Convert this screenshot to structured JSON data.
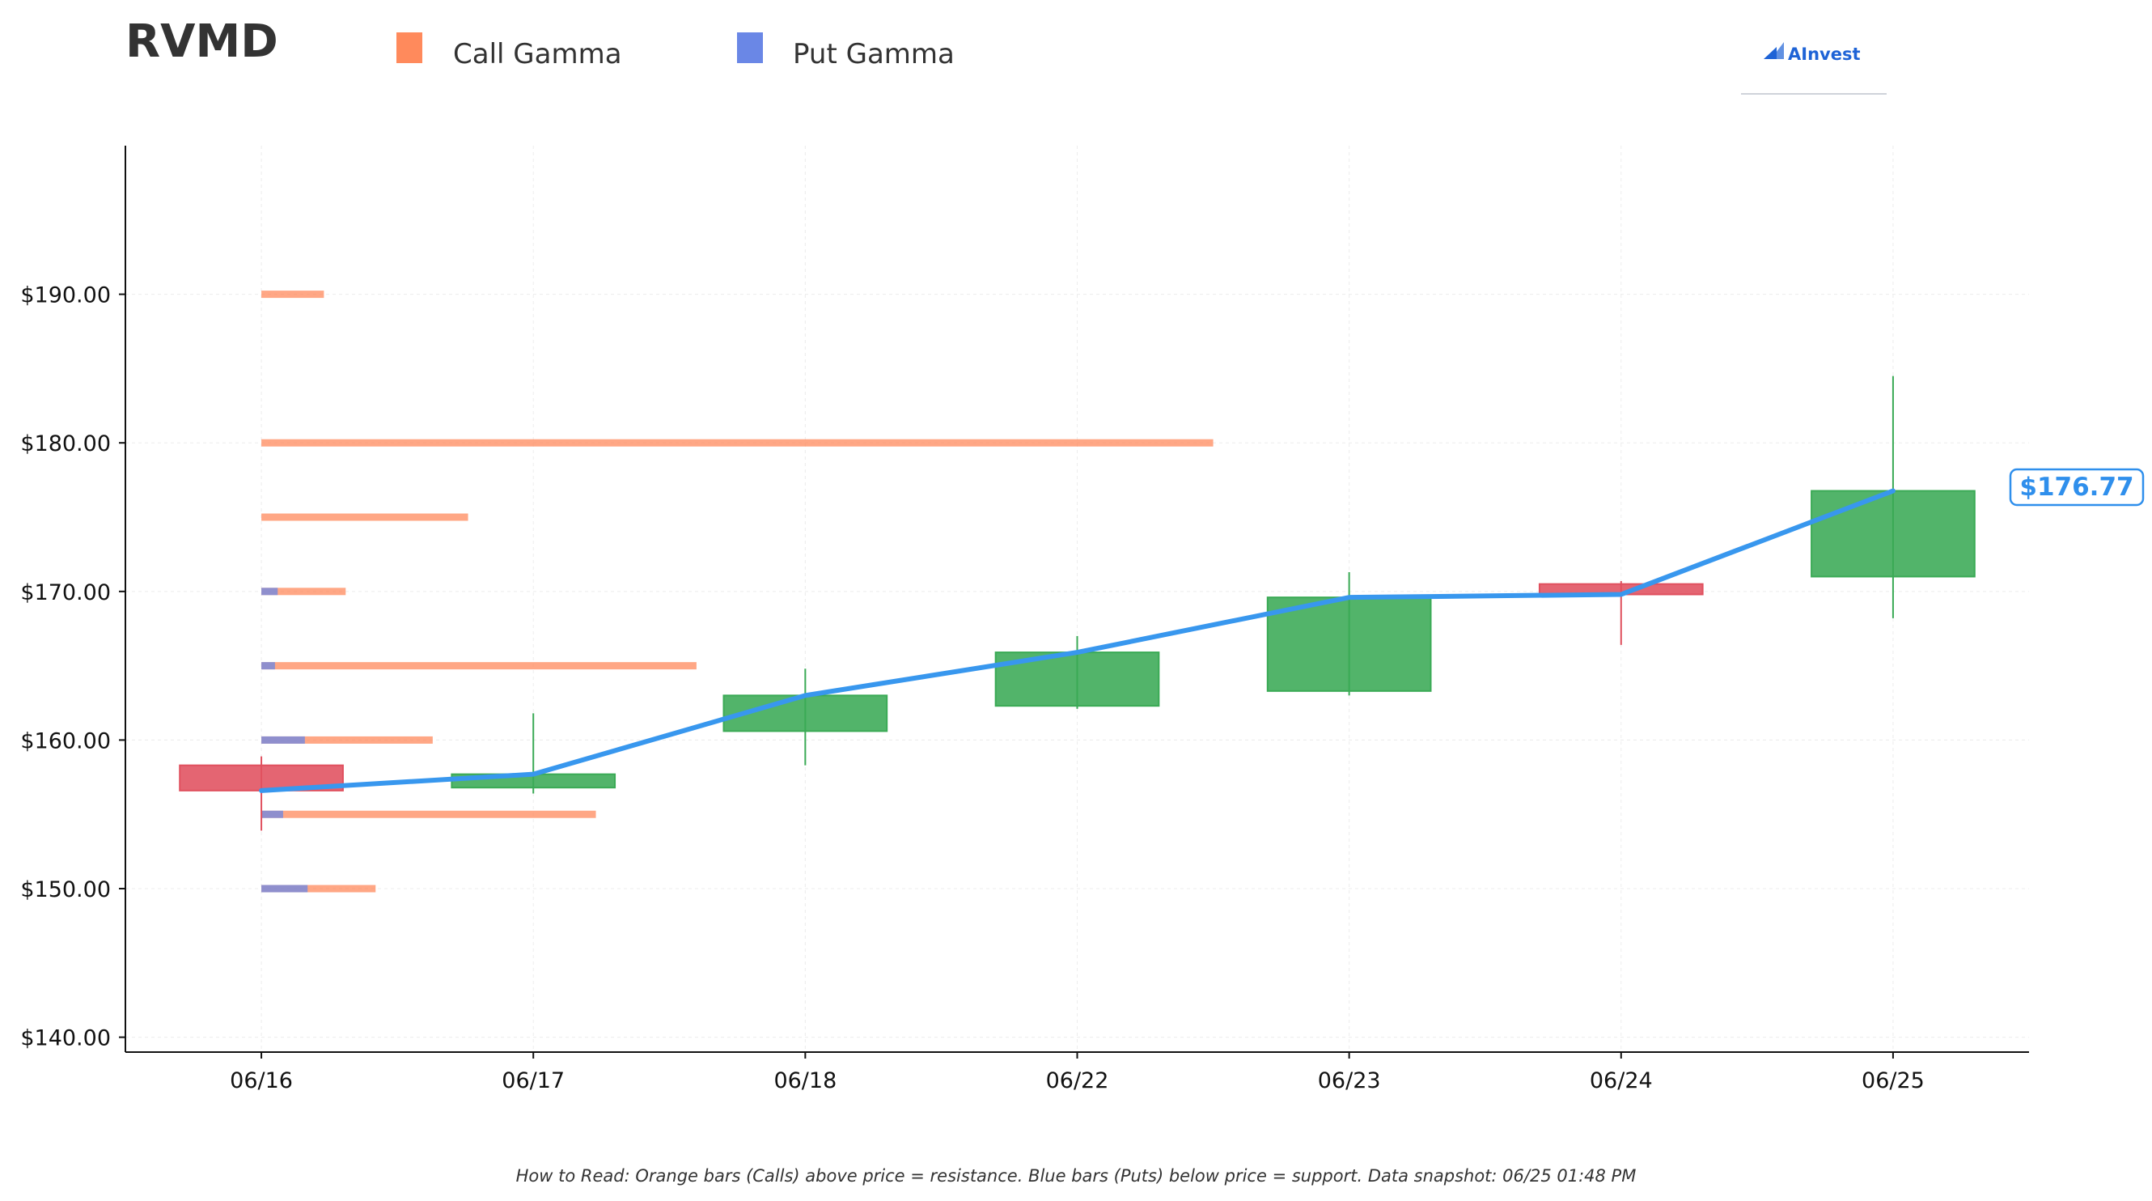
{
  "header": {
    "ticker": "RVMD",
    "brand": "AInvest"
  },
  "legend": [
    {
      "label": "Call Gamma",
      "color": "#ff8a5c"
    },
    {
      "label": "Put Gamma",
      "color": "#6a87e6"
    }
  ],
  "footnote": "How to Read: Orange bars (Calls) above price = resistance. Blue bars (Puts) below price = support. Data snapshot: 06/25 01:48 PM",
  "chart_data": {
    "type": "candlestick",
    "categories": [
      "06/16",
      "06/17",
      "06/18",
      "06/22",
      "06/23",
      "06/24",
      "06/25"
    ],
    "ohlc": [
      {
        "date": "06/16",
        "open": 158.3,
        "high": 158.9,
        "low": 153.9,
        "close": 156.6
      },
      {
        "date": "06/17",
        "open": 156.8,
        "high": 161.8,
        "low": 156.4,
        "close": 157.7
      },
      {
        "date": "06/18",
        "open": 160.6,
        "high": 164.8,
        "low": 158.3,
        "close": 163.0
      },
      {
        "date": "06/22",
        "open": 162.3,
        "high": 167.0,
        "low": 162.1,
        "close": 165.9
      },
      {
        "date": "06/23",
        "open": 163.3,
        "high": 171.3,
        "low": 163.0,
        "close": 169.6
      },
      {
        "date": "06/24",
        "open": 170.5,
        "high": 170.7,
        "low": 166.4,
        "close": 169.8
      },
      {
        "date": "06/25",
        "open": 171.0,
        "high": 184.5,
        "low": 168.2,
        "close": 176.77
      }
    ],
    "close_line": {
      "color": "#3897ee",
      "values": [
        156.6,
        157.7,
        163.0,
        165.9,
        169.6,
        169.8,
        176.77
      ]
    },
    "last_price_label": "$176.77",
    "gamma_levels": [
      {
        "strike": 190,
        "call": 0.23,
        "put": 0
      },
      {
        "strike": 180,
        "call": 3.5,
        "put": 0
      },
      {
        "strike": 175,
        "call": 0.76,
        "put": 0
      },
      {
        "strike": 170,
        "call": 0.31,
        "put": 0.06
      },
      {
        "strike": 165,
        "call": 1.6,
        "put": 0.05
      },
      {
        "strike": 160,
        "call": 0.63,
        "put": 0.16
      },
      {
        "strike": 155,
        "call": 1.23,
        "put": 0.08
      },
      {
        "strike": 150,
        "call": 0.42,
        "put": 0.17
      }
    ],
    "gamma_unit_note": "bar length in x-axis category units",
    "yticks": [
      "$140.00",
      "$150.00",
      "$160.00",
      "$170.00",
      "$180.00",
      "$190.00"
    ],
    "ytick_values": [
      140,
      150,
      160,
      170,
      180,
      190
    ],
    "ylim": [
      139,
      200
    ],
    "xlim": [
      -0.5,
      6.5
    ],
    "grid": true,
    "legend_position": "top-left",
    "colors": {
      "up": "#3aaa55",
      "down": "#e0505e",
      "call": "#ff8a5c",
      "put": "#6a87e6",
      "line": "#3897ee"
    }
  }
}
